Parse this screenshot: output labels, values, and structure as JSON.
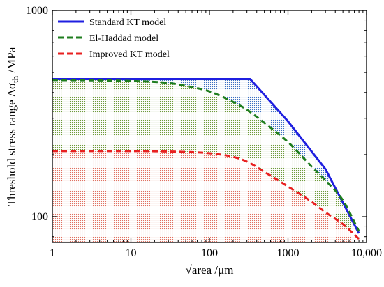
{
  "chart_data": {
    "type": "line",
    "title": "",
    "xlabel": "√area /μm",
    "ylabel_prefix": "Threshold stress range Δσ",
    "ylabel_sub": "th",
    "ylabel_suffix": " /MPa",
    "xscale": "log",
    "yscale": "log",
    "xlim": [
      1,
      10000
    ],
    "ylim": [
      75,
      1000
    ],
    "x_ticks": [
      {
        "value": 1,
        "label": "1"
      },
      {
        "value": 10,
        "label": "10"
      },
      {
        "value": 100,
        "label": "100"
      },
      {
        "value": 1000,
        "label": "1000"
      },
      {
        "value": 10000,
        "label": "10,000"
      }
    ],
    "y_ticks": [
      {
        "value": 100,
        "label": "100"
      },
      {
        "value": 1000,
        "label": "1000"
      }
    ],
    "legend_position": "top-left",
    "series": [
      {
        "name": "Standard KT model",
        "color": "#1f1fe0",
        "fill": "#5b9bd5",
        "style": "solid",
        "x": [
          1,
          330,
          1000,
          3000,
          8000
        ],
        "y": [
          465,
          465,
          290,
          170,
          83
        ]
      },
      {
        "name": "El-Haddad model",
        "color": "#1e7d1e",
        "fill": "#8fbc4f",
        "style": "dashed",
        "x": [
          1,
          10,
          30,
          60,
          100,
          200,
          300,
          500,
          1000,
          2000,
          3000,
          5000,
          8000
        ],
        "y": [
          460,
          455,
          445,
          425,
          405,
          360,
          330,
          285,
          230,
          175,
          150,
          120,
          85
        ]
      },
      {
        "name": "Improved KT model",
        "color": "#e82020",
        "fill": "#f08070",
        "style": "dashed",
        "x": [
          1,
          10,
          30,
          100,
          200,
          300,
          500,
          1000,
          2000,
          3000,
          5000,
          8000
        ],
        "y": [
          208,
          208,
          207,
          203,
          195,
          185,
          165,
          140,
          118,
          105,
          92,
          78
        ]
      }
    ]
  }
}
